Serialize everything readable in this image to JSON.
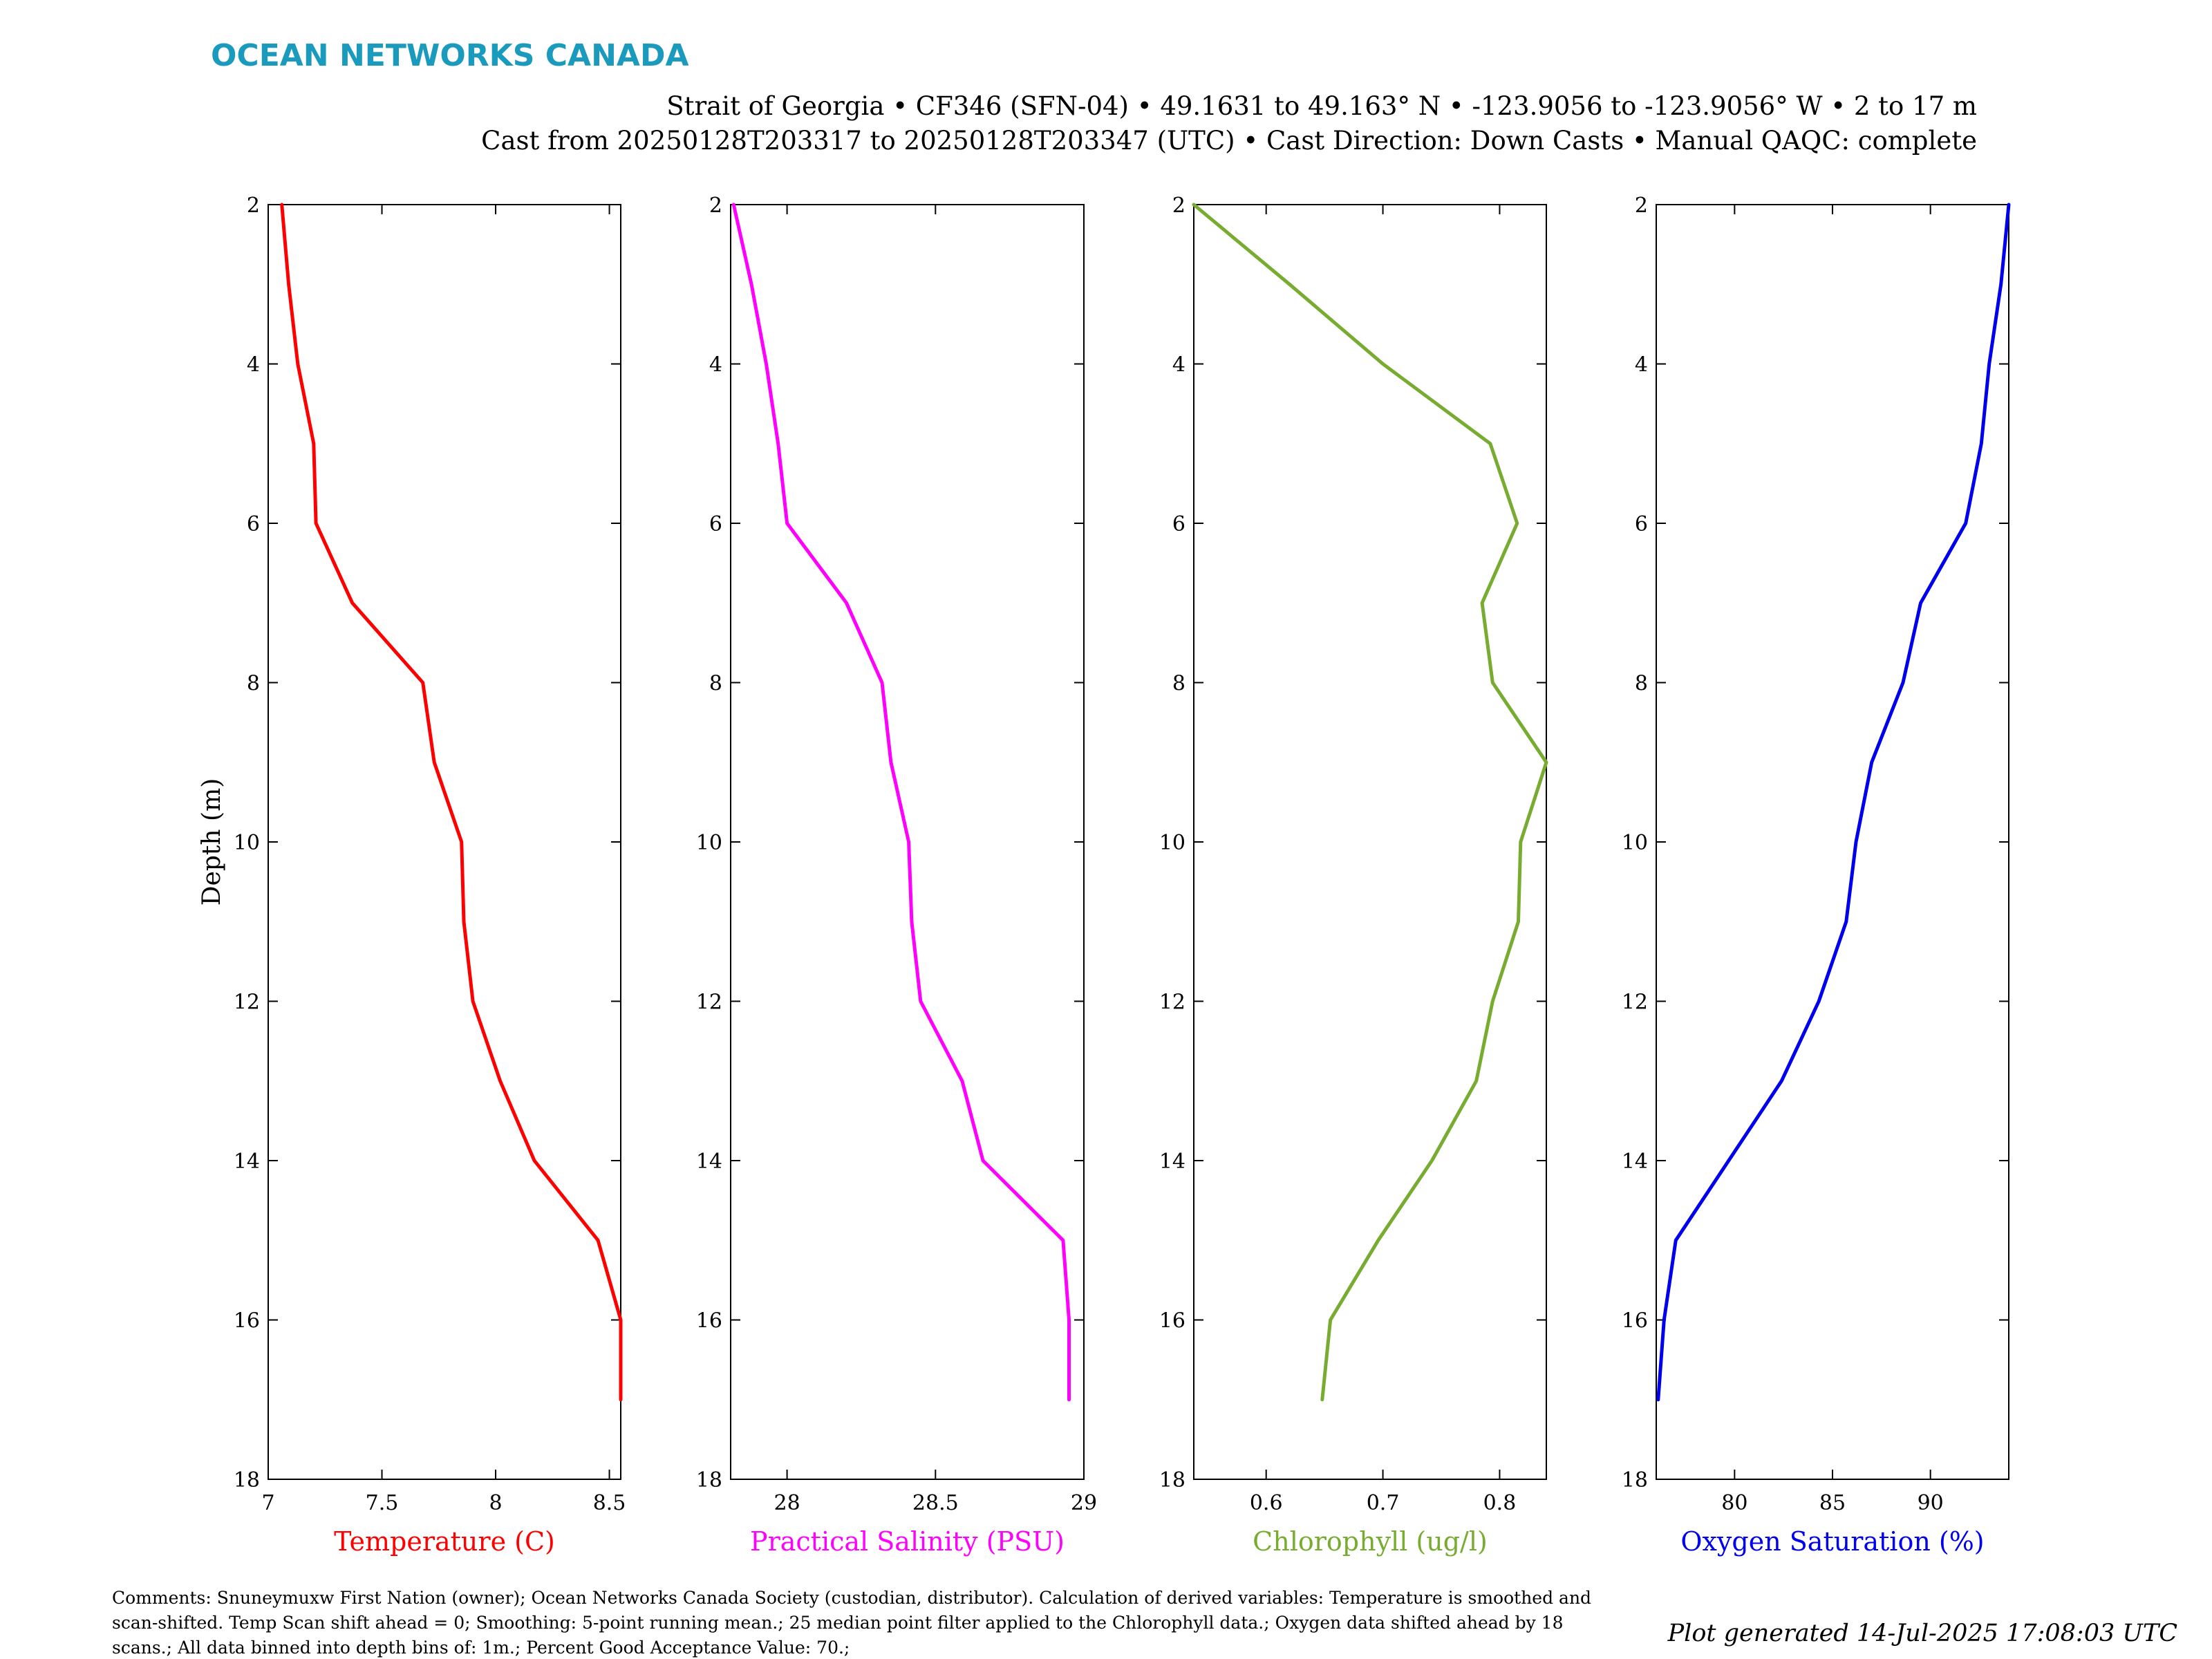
{
  "brand": {
    "logo_text": "OCEAN NETWORKS CANADA",
    "logo_color": "#1a9bbd"
  },
  "header": {
    "line1": "Strait of Georgia • CF346 (SFN-04) • 49.1631 to 49.163° N • -123.9056 to -123.9056° W • 2 to 17 m",
    "line2": "Cast from 20250128T203317 to 20250128T203347 (UTC) • Cast Direction: Down Casts • Manual QAQC: complete"
  },
  "footer": {
    "comments_lines": [
      "Comments: Snuneymuxw First Nation (owner); Ocean Networks Canada Society (custodian, distributor). Calculation of derived variables: Temperature is smoothed and",
      "scan-shifted. Temp Scan shift ahead = 0; Smoothing: 5-point running mean.; 25 median point filter applied to the Chlorophyll data.; Oxygen data shifted ahead by 18",
      "scans.; All data binned into depth bins of: 1m.; Percent Good Acceptance Value: 70.;"
    ],
    "generated": "Plot generated 14-Jul-2025 17:08:03 UTC"
  },
  "chart_data": [
    {
      "type": "line",
      "title": "",
      "xlabel": "Temperature (C)",
      "ylabel": "Depth (m)",
      "color": "#ff0000",
      "xlim": [
        7,
        8.55
      ],
      "ylim": [
        2,
        18
      ],
      "y_reversed": true,
      "xticks": [
        7,
        7.5,
        8,
        8.5
      ],
      "xtick_labels": [
        "7",
        "7.5",
        "8",
        "8.5"
      ],
      "yticks": [
        2,
        4,
        6,
        8,
        10,
        12,
        14,
        16,
        18
      ],
      "depth": [
        2,
        3,
        4,
        5,
        6,
        7,
        8,
        9,
        10,
        11,
        12,
        13,
        14,
        15,
        16,
        17
      ],
      "values": [
        7.06,
        7.09,
        7.13,
        7.2,
        7.21,
        7.37,
        7.68,
        7.73,
        7.85,
        7.86,
        7.9,
        8.02,
        8.17,
        8.45,
        8.55,
        8.55
      ]
    },
    {
      "type": "line",
      "title": "",
      "xlabel": "Practical Salinity (PSU)",
      "ylabel": "",
      "color": "#ff00ff",
      "xlim": [
        27.81,
        29
      ],
      "ylim": [
        2,
        18
      ],
      "y_reversed": true,
      "xticks": [
        28,
        28.5,
        29
      ],
      "xtick_labels": [
        "28",
        "28.5",
        "29"
      ],
      "yticks": [
        2,
        4,
        6,
        8,
        10,
        12,
        14,
        16,
        18
      ],
      "depth": [
        2,
        3,
        4,
        5,
        6,
        7,
        8,
        9,
        10,
        11,
        12,
        13,
        14,
        15,
        16,
        17
      ],
      "values": [
        27.82,
        27.88,
        27.93,
        27.97,
        28.0,
        28.2,
        28.32,
        28.35,
        28.41,
        28.42,
        28.45,
        28.59,
        28.66,
        28.93,
        28.95,
        28.95
      ]
    },
    {
      "type": "line",
      "title": "",
      "xlabel": "Chlorophyll (ug/l)",
      "ylabel": "",
      "color": "#77ac30",
      "xlim": [
        0.538,
        0.84
      ],
      "ylim": [
        2,
        18
      ],
      "y_reversed": true,
      "xticks": [
        0.6,
        0.7,
        0.8
      ],
      "xtick_labels": [
        "0.6",
        "0.7",
        "0.8"
      ],
      "yticks": [
        2,
        4,
        6,
        8,
        10,
        12,
        14,
        16,
        18
      ],
      "depth": [
        2,
        3,
        4,
        5,
        6,
        7,
        8,
        9,
        10,
        11,
        12,
        13,
        14,
        15,
        16,
        17
      ],
      "values": [
        0.538,
        0.62,
        0.7,
        0.792,
        0.815,
        0.785,
        0.794,
        0.84,
        0.818,
        0.816,
        0.794,
        0.78,
        0.742,
        0.696,
        0.655,
        0.648
      ]
    },
    {
      "type": "line",
      "title": "",
      "xlabel": "Oxygen Saturation (%)",
      "ylabel": "",
      "color": "#0000ee",
      "xlim": [
        76,
        94
      ],
      "ylim": [
        2,
        18
      ],
      "y_reversed": true,
      "xticks": [
        80,
        85,
        90
      ],
      "xtick_labels": [
        "80",
        "85",
        "90"
      ],
      "yticks": [
        2,
        4,
        6,
        8,
        10,
        12,
        14,
        16,
        18
      ],
      "depth": [
        2,
        3,
        4,
        5,
        6,
        7,
        8,
        9,
        10,
        11,
        12,
        13,
        14,
        15,
        16,
        17
      ],
      "values": [
        94.0,
        93.6,
        93.0,
        92.6,
        91.8,
        89.5,
        88.6,
        87.0,
        86.2,
        85.7,
        84.3,
        82.4,
        79.7,
        77.0,
        76.4,
        76.1
      ]
    }
  ]
}
